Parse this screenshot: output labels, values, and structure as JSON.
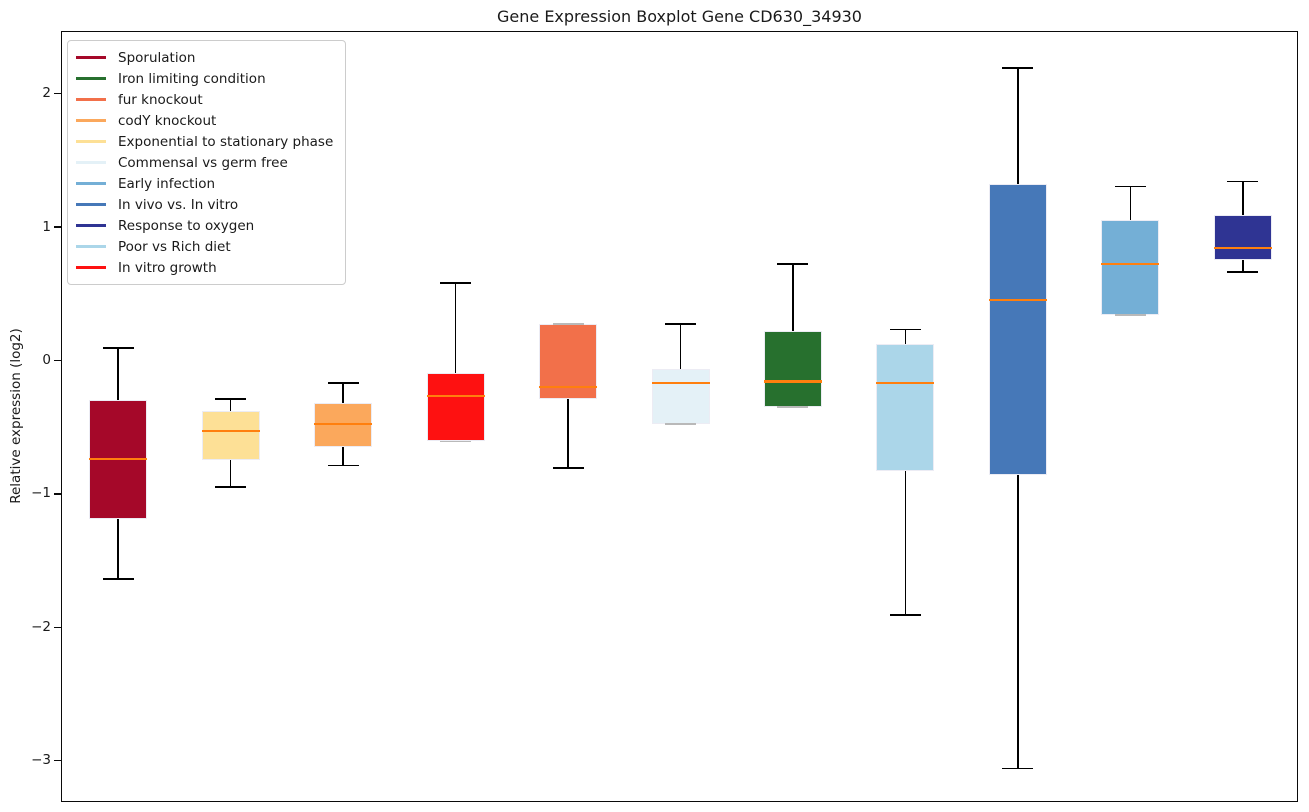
{
  "chart_data": {
    "type": "boxplot",
    "title": "Gene Expression Boxplot Gene CD630_34930",
    "xlabel": "",
    "ylabel": "Relative expression (log2)",
    "ylim": [
      -3.31,
      2.47
    ],
    "ytick_values": [
      2,
      1,
      0,
      -1,
      -2,
      -3
    ],
    "ytick_labels": [
      "2",
      "1",
      "0",
      "−1",
      "−2",
      "−3"
    ],
    "grid": false,
    "legend_position": "upper-left",
    "median_color": "#ff7f0e",
    "whisker_color": "#000000",
    "cap_at_box_color": "#b9b9b9",
    "box_edge_color": "#ececf4",
    "legend": [
      {
        "name": "Sporulation",
        "color": "#a50829"
      },
      {
        "name": "Iron limiting condition",
        "color": "#27702e"
      },
      {
        "name": "fur knockout",
        "color": "#f2704a"
      },
      {
        "name": "codY knockout",
        "color": "#fba85c"
      },
      {
        "name": "Exponential to stationary phase",
        "color": "#fde096"
      },
      {
        "name": "Commensal vs germ free",
        "color": "#e4f1f7"
      },
      {
        "name": "Early infection",
        "color": "#74afd6"
      },
      {
        "name": "In vivo vs. In vitro",
        "color": "#4678b8"
      },
      {
        "name": "Response to oxygen",
        "color": "#2f3493"
      },
      {
        "name": "Poor vs Rich diet",
        "color": "#abd6e9"
      },
      {
        "name": "In vitro growth",
        "color": "#fe1111"
      }
    ],
    "series": [
      {
        "name": "Sporulation",
        "color": "#a50829",
        "whisker_low": -1.63,
        "q1": -1.18,
        "median": -0.73,
        "q3": -0.29,
        "whisker_high": 0.1
      },
      {
        "name": "Exponential to stationary phase",
        "color": "#fde096",
        "whisker_low": -0.94,
        "q1": -0.74,
        "median": -0.52,
        "q3": -0.37,
        "whisker_high": -0.28
      },
      {
        "name": "codY knockout",
        "color": "#fba85c",
        "whisker_low": -0.78,
        "q1": -0.64,
        "median": -0.47,
        "q3": -0.31,
        "whisker_high": -0.16
      },
      {
        "name": "In vitro growth",
        "color": "#fe1111",
        "whisker_low": -0.6,
        "q1": -0.6,
        "median": -0.26,
        "q3": -0.09,
        "whisker_high": 0.59
      },
      {
        "name": "fur knockout",
        "color": "#f2704a",
        "whisker_low": -0.8,
        "q1": -0.28,
        "median": -0.19,
        "q3": 0.28,
        "whisker_high": 0.28
      },
      {
        "name": "Commensal vs germ free",
        "color": "#e4f1f7",
        "whisker_low": -0.47,
        "q1": -0.47,
        "median": -0.16,
        "q3": -0.06,
        "whisker_high": 0.28
      },
      {
        "name": "Iron limiting condition",
        "color": "#27702e",
        "whisker_low": -0.34,
        "q1": -0.34,
        "median": -0.15,
        "q3": 0.23,
        "whisker_high": 0.73
      },
      {
        "name": "Poor vs Rich diet",
        "color": "#abd6e9",
        "whisker_low": -1.9,
        "q1": -0.82,
        "median": -0.16,
        "q3": 0.13,
        "whisker_high": 0.24
      },
      {
        "name": "In vivo vs. In vitro",
        "color": "#4678b8",
        "whisker_low": -3.05,
        "q1": -0.85,
        "median": 0.46,
        "q3": 1.33,
        "whisker_high": 2.2
      },
      {
        "name": "Early infection",
        "color": "#74afd6",
        "whisker_low": 0.35,
        "q1": 0.35,
        "median": 0.73,
        "q3": 1.06,
        "whisker_high": 1.31
      },
      {
        "name": "Response to oxygen",
        "color": "#2f3493",
        "whisker_low": 0.67,
        "q1": 0.76,
        "median": 0.85,
        "q3": 1.1,
        "whisker_high": 1.35
      }
    ]
  }
}
